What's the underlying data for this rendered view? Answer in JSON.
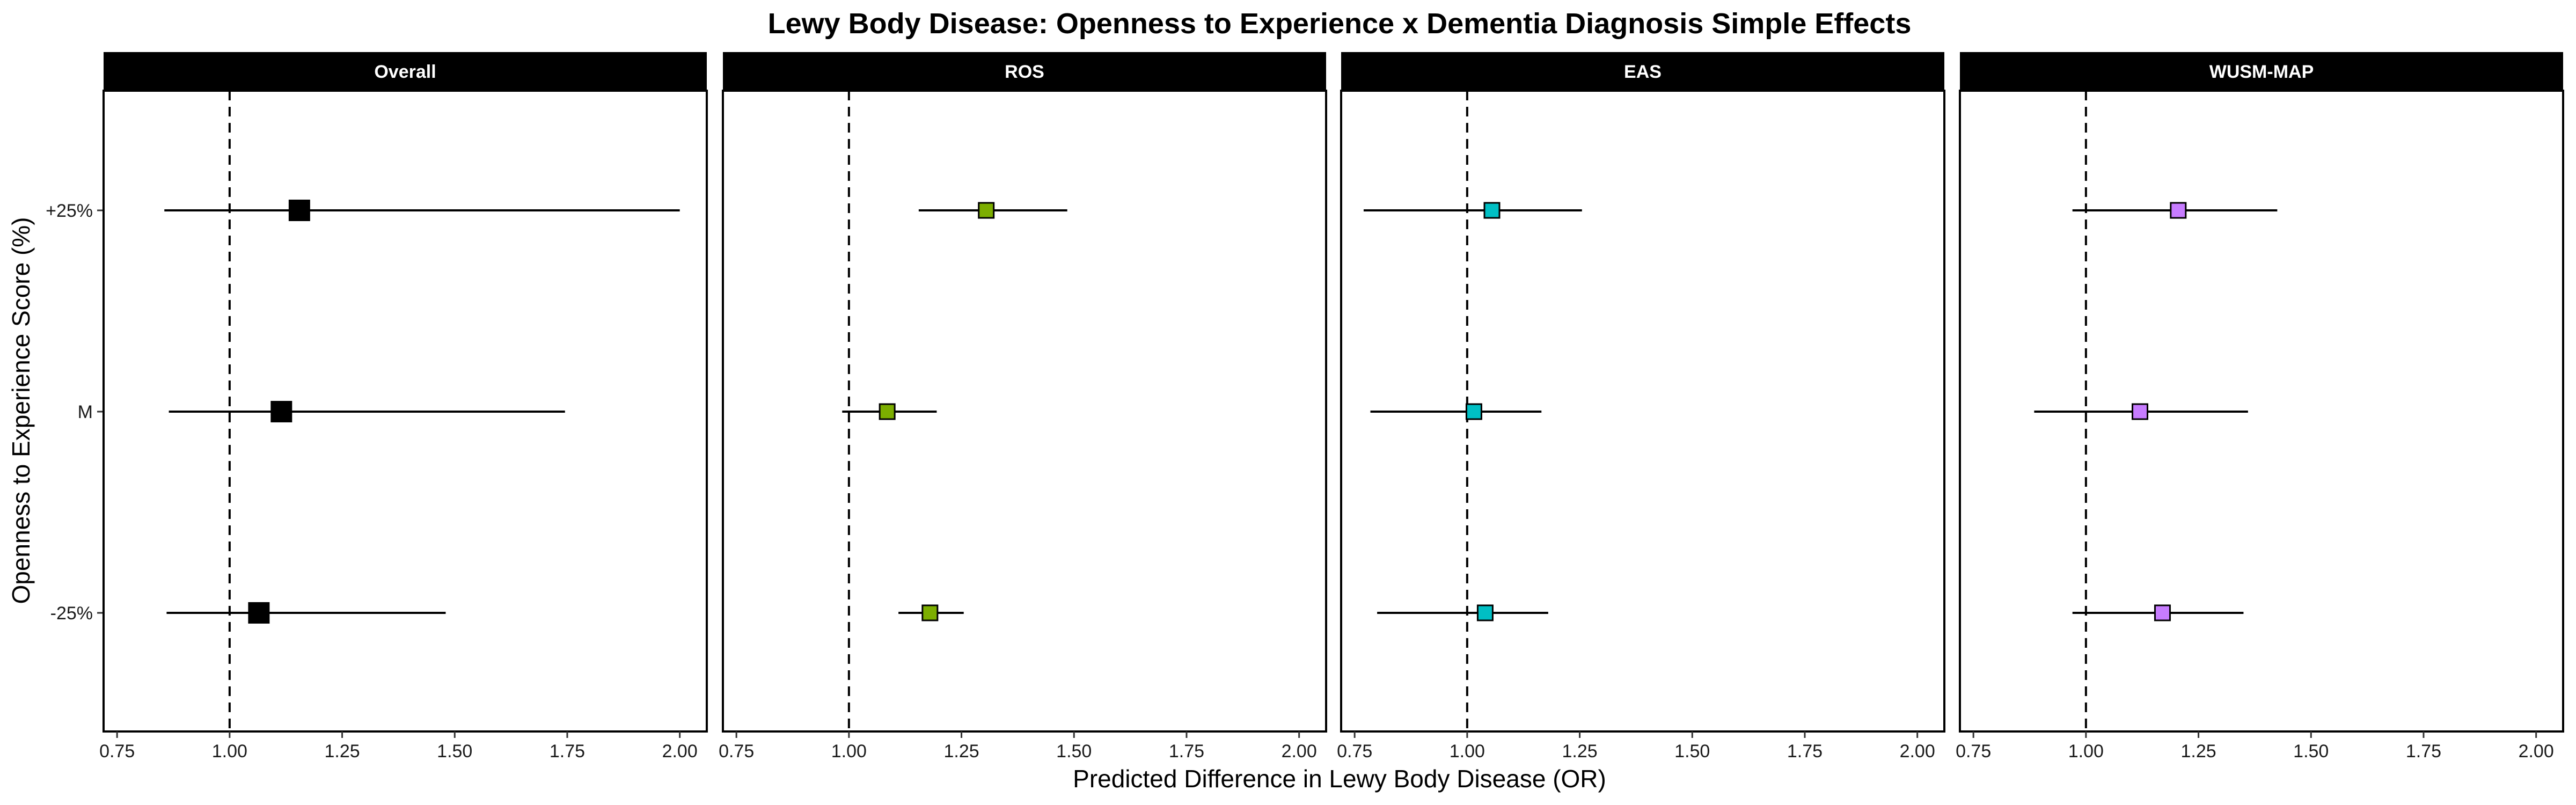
{
  "chart_data": {
    "type": "scatter",
    "title": "Lewy Body Disease: Openness to Experience x Dementia Diagnosis Simple Effects",
    "xlabel": "Predicted Difference in Lewy Body Disease (OR)",
    "ylabel": "Openness to Experience Score (%)",
    "xlim": [
      0.72,
      2.06
    ],
    "xticks": [
      0.75,
      1.0,
      1.25,
      1.5,
      1.75,
      2.0
    ],
    "xtick_labels": [
      "0.75",
      "1.00",
      "1.25",
      "1.50",
      "1.75",
      "2.00"
    ],
    "categories": [
      "+25%",
      "M",
      "-25%"
    ],
    "reference_line": 1.0,
    "panels": [
      {
        "name": "Overall",
        "color": "#000000",
        "points": [
          {
            "category": "+25%",
            "estimate": 1.155,
            "lower": 0.855,
            "upper": 2.0
          },
          {
            "category": "M",
            "estimate": 1.115,
            "lower": 0.865,
            "upper": 1.745
          },
          {
            "category": "-25%",
            "estimate": 1.065,
            "lower": 0.86,
            "upper": 1.48
          }
        ]
      },
      {
        "name": "ROS",
        "color": "#7CAE00",
        "points": [
          {
            "category": "+25%",
            "estimate": 1.305,
            "lower": 1.155,
            "upper": 1.485
          },
          {
            "category": "M",
            "estimate": 1.085,
            "lower": 0.985,
            "upper": 1.195
          },
          {
            "category": "-25%",
            "estimate": 1.18,
            "lower": 1.11,
            "upper": 1.255
          }
        ]
      },
      {
        "name": "EAS",
        "color": "#00BFC4",
        "points": [
          {
            "category": "+25%",
            "estimate": 1.055,
            "lower": 0.77,
            "upper": 1.255
          },
          {
            "category": "M",
            "estimate": 1.015,
            "lower": 0.785,
            "upper": 1.165
          },
          {
            "category": "-25%",
            "estimate": 1.04,
            "lower": 0.8,
            "upper": 1.18
          }
        ]
      },
      {
        "name": "WUSM-MAP",
        "color": "#C77CFF",
        "points": [
          {
            "category": "+25%",
            "estimate": 1.205,
            "lower": 0.97,
            "upper": 1.425
          },
          {
            "category": "M",
            "estimate": 1.12,
            "lower": 0.885,
            "upper": 1.36
          },
          {
            "category": "-25%",
            "estimate": 1.17,
            "lower": 0.97,
            "upper": 1.35
          }
        ]
      }
    ]
  }
}
